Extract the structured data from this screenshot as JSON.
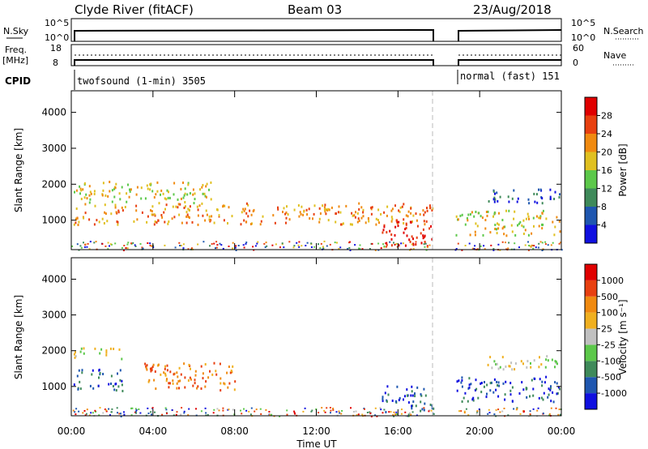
{
  "header": {
    "station": "Clyde River (fitACF)",
    "beam": "Beam 03",
    "date": "23/Aug/2018"
  },
  "noise_panel": {
    "left_label": "N.Sky",
    "right_label": "N.Search",
    "left_ticks": [
      "10^5",
      "10^0"
    ],
    "right_ticks": [
      "10^5",
      "10^0"
    ]
  },
  "freq_panel": {
    "left_label_line1": "Freq.",
    "left_label_line2": "[MHz]",
    "right_label": "Nave",
    "left_ticks": [
      "18",
      "8"
    ],
    "right_ticks": [
      "60",
      "0"
    ],
    "cpid_label": "CPID",
    "cpid_1": "twofsound (1-min) 3505",
    "cpid_2": "normal (fast) 151"
  },
  "time_axis": {
    "label": "Time UT",
    "ticks": [
      "00:00",
      "04:00",
      "08:00",
      "12:00",
      "16:00",
      "20:00",
      "00:00"
    ]
  },
  "chart_data": [
    {
      "type": "heatmap",
      "title": "Power",
      "xlabel": "Time UT",
      "ylabel": "Slant Range [km]",
      "xlim": [
        0,
        24
      ],
      "ylim": [
        180,
        4600
      ],
      "y_ticks": [
        1000,
        2000,
        3000,
        4000
      ],
      "colorbar": {
        "label": "Power [dB]",
        "ticks": [
          "4",
          "8",
          "12",
          "16",
          "20",
          "24",
          "28"
        ],
        "colors": [
          "#1010e0",
          "#1f57b0",
          "#3f8a5a",
          "#5cc84a",
          "#e0c020",
          "#f08a10",
          "#e84010",
          "#e00000"
        ]
      },
      "data_gap_hours": [
        17.75,
        18.75
      ],
      "scatter_regions": [
        {
          "t0": 0.1,
          "t1": 17.7,
          "r0": 900,
          "r1": 1500,
          "level": 5
        },
        {
          "t0": 0.1,
          "t1": 7.0,
          "r0": 1500,
          "r1": 2100,
          "level": 4
        },
        {
          "t0": 15.2,
          "t1": 17.7,
          "r0": 300,
          "r1": 1050,
          "level": 7
        },
        {
          "t0": 18.8,
          "t1": 23.9,
          "r0": 600,
          "r1": 1300,
          "level": 4
        },
        {
          "t0": 20.2,
          "t1": 23.9,
          "r0": 1500,
          "r1": 1900,
          "level": 1
        }
      ]
    },
    {
      "type": "heatmap",
      "title": "Velocity",
      "xlabel": "Time UT",
      "ylabel": "Slant Range [km]",
      "xlim": [
        0,
        24
      ],
      "ylim": [
        180,
        4600
      ],
      "y_ticks": [
        1000,
        2000,
        3000,
        4000
      ],
      "colorbar": {
        "label": "Velocity [m s⁻¹]",
        "ticks": [
          "1000",
          "500",
          "100",
          "25",
          "-25",
          "-100",
          "-500",
          "-1000"
        ],
        "colors": [
          "#1010e0",
          "#1f57b0",
          "#3f8a5a",
          "#5cc84a",
          "#c0c0c0",
          "#f0b020",
          "#f08a10",
          "#e84010",
          "#e00000"
        ]
      },
      "data_gap_hours": [
        17.75,
        18.75
      ],
      "scatter_regions": [
        {
          "t0": 0.1,
          "t1": 2.5,
          "r0": 900,
          "r1": 1500,
          "level": 1
        },
        {
          "t0": 3.5,
          "t1": 8.0,
          "r0": 900,
          "r1": 1700,
          "level": 6
        },
        {
          "t0": 0.1,
          "t1": 2.5,
          "r0": 1800,
          "r1": 2100,
          "level": 4
        },
        {
          "t0": 15.2,
          "t1": 17.7,
          "r0": 300,
          "r1": 1050,
          "level": 1
        },
        {
          "t0": 18.8,
          "t1": 23.9,
          "r0": 600,
          "r1": 1300,
          "level": 1
        },
        {
          "t0": 20.2,
          "t1": 23.9,
          "r0": 1500,
          "r1": 1900,
          "level": 4
        }
      ]
    }
  ]
}
